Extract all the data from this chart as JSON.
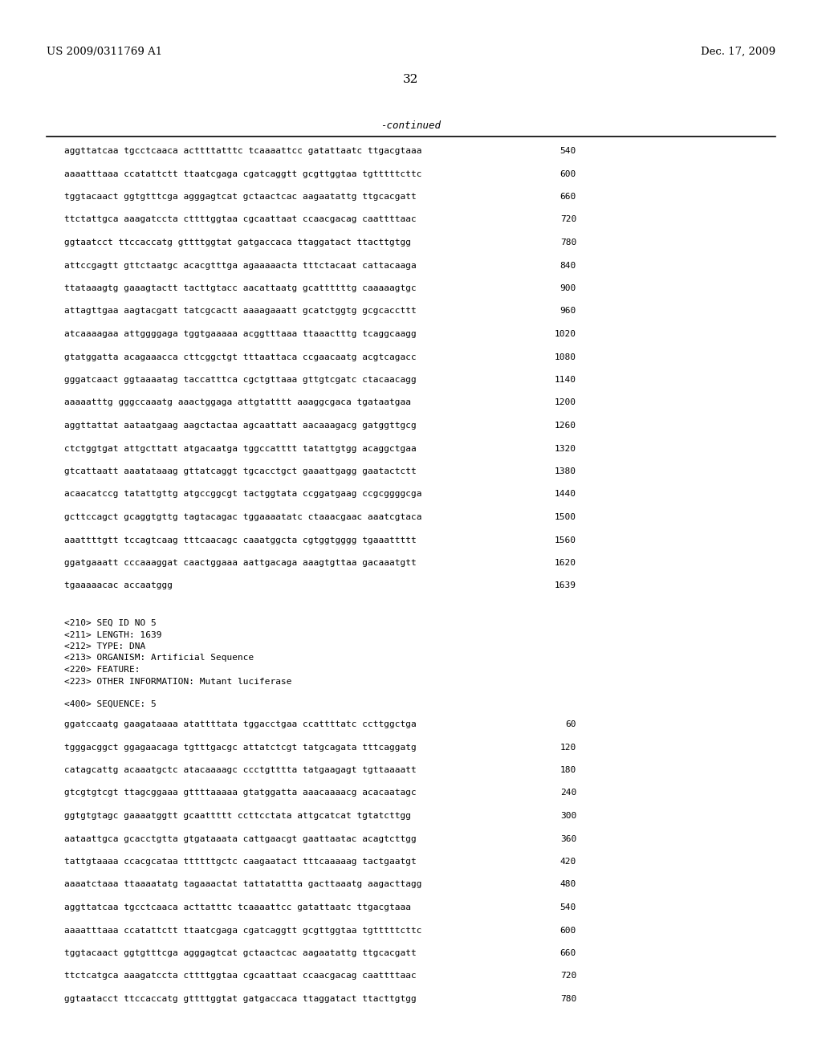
{
  "header_left": "US 2009/0311769 A1",
  "header_right": "Dec. 17, 2009",
  "page_number": "32",
  "continued_label": "-continued",
  "background_color": "#ffffff",
  "text_color": "#000000",
  "sequence_lines_top": [
    [
      "aggttatcaa tgcctcaaca acttttatttc tcaaaattcc gatattaatc ttgacgtaaa",
      "540"
    ],
    [
      "aaaatttaaa ccatattctt ttaatcgaga cgatcaggtt gcgttggtaa tgtttttcttc",
      "600"
    ],
    [
      "tggtacaact ggtgtttcga agggagtcat gctaactcac aagaatattg ttgcacgatt",
      "660"
    ],
    [
      "ttctattgca aaagatccta cttttggtaa cgcaattaat ccaacgacag caattttaac",
      "720"
    ],
    [
      "ggtaatcct ttccaccatg gttttggtat gatgaccaca ttaggatact ttacttgtgg",
      "780"
    ],
    [
      "attccgagtt gttctaatgc acacgtttga agaaaaacta tttctacaat cattacaaga",
      "840"
    ],
    [
      "ttataaagtg gaaagtactt tacttgtacc aacattaatg gcattttttg caaaaagtgc",
      "900"
    ],
    [
      "attagttgaa aagtacgatt tatcgcactt aaaagaaatt gcatctggtg gcgcaccttt",
      "960"
    ],
    [
      "atcaaaagaa attggggaga tggtgaaaaa acggtttaaa ttaaactttg tcaggcaagg",
      "1020"
    ],
    [
      "gtatggatta acagaaacca cttcggctgt tttaattaca ccgaacaatg acgtcagacc",
      "1080"
    ],
    [
      "gggatcaact ggtaaaatag taccatttca cgctgttaaa gttgtcgatc ctacaacagg",
      "1140"
    ],
    [
      "aaaaatttg gggccaaatg aaactggaga attgtatttt aaaggcgaca tgataatgaa",
      "1200"
    ],
    [
      "aggttattat aataatgaag aagctactaa agcaattatt aacaaagacg gatggttgcg",
      "1260"
    ],
    [
      "ctctggtgat attgcttatt atgacaatga tggccatttt tatattgtgg acaggctgaa",
      "1320"
    ],
    [
      "gtcattaatt aaatataaag gttatcaggt tgcacctgct gaaattgagg gaatactctt",
      "1380"
    ],
    [
      "acaacatccg tatattgttg atgccggcgt tactggtata ccggatgaag ccgcggggcga",
      "1440"
    ],
    [
      "gcttccagct gcaggtgttg tagtacagac tggaaaatatc ctaaacgaac aaatcgtaca",
      "1500"
    ],
    [
      "aaattttgtt tccagtcaag tttcaacagc caaatggcta cgtggtgggg tgaaattttt",
      "1560"
    ],
    [
      "ggatgaaatt cccaaaggat caactggaaa aattgacaga aaagtgttaa gacaaatgtt",
      "1620"
    ],
    [
      "tgaaaaacac accaatggg",
      "1639"
    ]
  ],
  "metadata_lines": [
    "<210> SEQ ID NO 5",
    "<211> LENGTH: 1639",
    "<212> TYPE: DNA",
    "<213> ORGANISM: Artificial Sequence",
    "<220> FEATURE:",
    "<223> OTHER INFORMATION: Mutant luciferase"
  ],
  "sequence_label": "<400> SEQUENCE: 5",
  "sequence_lines_bottom": [
    [
      "ggatccaatg gaagataaaa atattttata tggacctgaa ccattttatc ccttggctga",
      "60"
    ],
    [
      "tgggacggct ggagaacaga tgtttgacgc attatctcgt tatgcagata tttcaggatg",
      "120"
    ],
    [
      "catagcattg acaaatgctc atacaaaagc ccctgtttta tatgaagagt tgttaaaatt",
      "180"
    ],
    [
      "gtcgtgtcgt ttagcggaaa gttttaaaaa gtatggatta aaacaaaacg acacaatagc",
      "240"
    ],
    [
      "ggtgtgtagc gaaaatggtt gcaattttt ccttcctata attgcatcat tgtatcttgg",
      "300"
    ],
    [
      "aataattgca gcacctgtta gtgataaata cattgaacgt gaattaatac acagtcttgg",
      "360"
    ],
    [
      "tattgtaaaa ccacgcataa ttttttgctc caagaatact tttcaaaaag tactgaatgt",
      "420"
    ],
    [
      "aaaatctaaa ttaaaatatg tagaaactat tattatattta gacttaaatg aagacttagg",
      "480"
    ],
    [
      "aggttatcaa tgcctcaaca acttatttc tcaaaattcc gatattaatc ttgacgtaaa",
      "540"
    ],
    [
      "aaaatttaaa ccatattctt ttaatcgaga cgatcaggtt gcgttggtaa tgtttttcttc",
      "600"
    ],
    [
      "tggtacaact ggtgtttcga agggagtcat gctaactcac aagaatattg ttgcacgatt",
      "660"
    ],
    [
      "ttctcatgca aaagatccta cttttggtaa cgcaattaat ccaacgacag caattttaac",
      "720"
    ],
    [
      "ggtaatacct ttccaccatg gttttggtat gatgaccaca ttaggatact ttacttgtgg",
      "780"
    ]
  ]
}
